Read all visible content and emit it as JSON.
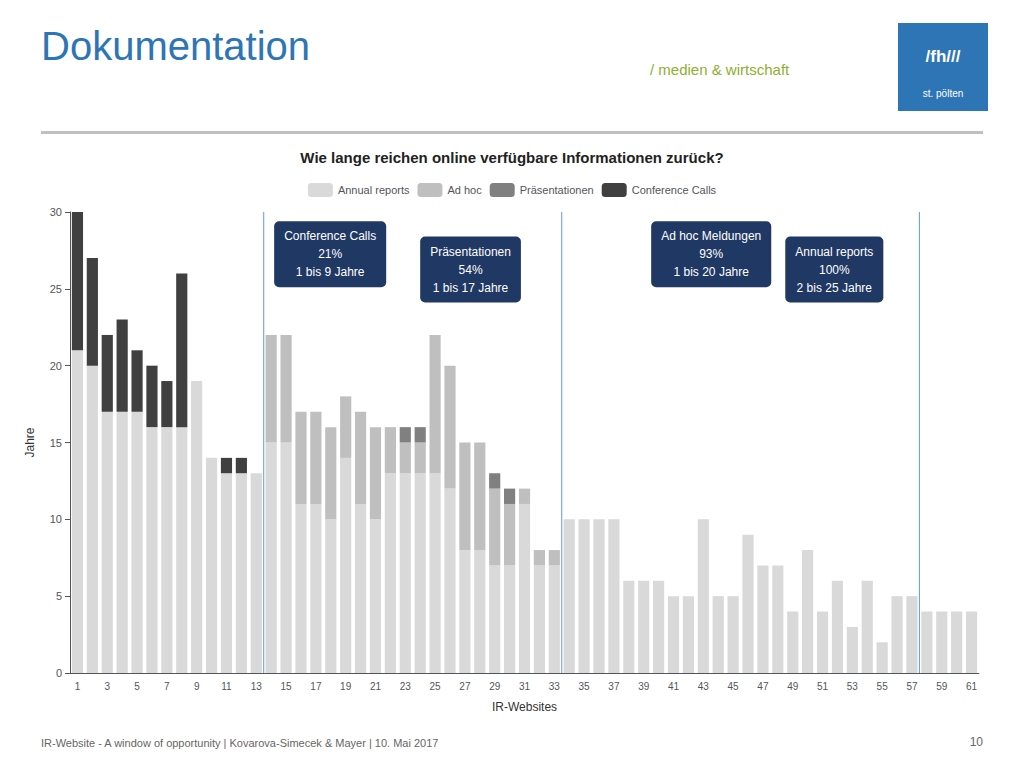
{
  "chart_data": {
    "type": "bar",
    "title": "Wie lange reichen online verfügbare Informationen zurück?",
    "xlabel": "IR-Websites",
    "ylabel": "Jahre",
    "categories": [
      "1",
      null,
      "3",
      null,
      "5",
      null,
      "7",
      null,
      "9",
      null,
      "11",
      null,
      "13",
      null,
      "15",
      null,
      "17",
      null,
      "19",
      null,
      "21",
      null,
      "23",
      null,
      "25",
      null,
      "27",
      null,
      "29",
      null,
      "31",
      null,
      "33",
      null,
      "35",
      null,
      "37",
      null,
      "39",
      null,
      "41",
      null,
      "43",
      null,
      "45",
      null,
      "47",
      null,
      "49",
      null,
      "51",
      null,
      "53",
      null,
      "55",
      null,
      "57",
      null,
      "59",
      null,
      "61"
    ],
    "series": [
      {
        "name": "Annual reports",
        "color": "#D9D9D9",
        "values": [
          21,
          20,
          17,
          17,
          17,
          16,
          16,
          16,
          19,
          14,
          13,
          13,
          13,
          15,
          15,
          11,
          11,
          10,
          14,
          11,
          10,
          13,
          13,
          13,
          13,
          12,
          8,
          8,
          7,
          7,
          11,
          7,
          7,
          10,
          10,
          10,
          10,
          6,
          6,
          6,
          5,
          5,
          10,
          5,
          5,
          9,
          7,
          7,
          4,
          8,
          4,
          6,
          3,
          6,
          2,
          5,
          5,
          4,
          4,
          4,
          4
        ]
      },
      {
        "name": "Ad hoc",
        "color": "#BFBFBF",
        "values": [
          0,
          0,
          0,
          0,
          0,
          0,
          0,
          0,
          0,
          0,
          0,
          0,
          0,
          7,
          7,
          6,
          6,
          6,
          4,
          6,
          6,
          3,
          2,
          2,
          9,
          8,
          7,
          7,
          5,
          4,
          1,
          1,
          1,
          0,
          0,
          0,
          0,
          0,
          0,
          0,
          0,
          0,
          0,
          0,
          0,
          0,
          0,
          0,
          0,
          0,
          0,
          0,
          0,
          0,
          0,
          0,
          0,
          0,
          0,
          0,
          0
        ]
      },
      {
        "name": "Präsentationen",
        "color": "#808080",
        "values": [
          0,
          0,
          0,
          0,
          0,
          0,
          0,
          0,
          0,
          0,
          0,
          0,
          0,
          0,
          0,
          0,
          0,
          0,
          0,
          0,
          0,
          0,
          1,
          1,
          0,
          0,
          0,
          0,
          1,
          1,
          0,
          0,
          0,
          0,
          0,
          0,
          0,
          0,
          0,
          0,
          0,
          0,
          0,
          0,
          0,
          0,
          0,
          0,
          0,
          0,
          0,
          0,
          0,
          0,
          0,
          0,
          0,
          0,
          0,
          0,
          0
        ]
      },
      {
        "name": "Conference Calls",
        "color": "#404040",
        "values": [
          9,
          7,
          5,
          6,
          4,
          4,
          3,
          10,
          0,
          0,
          1,
          1,
          0,
          0,
          0,
          0,
          0,
          0,
          0,
          0,
          0,
          0,
          0,
          0,
          0,
          0,
          0,
          0,
          0,
          0,
          0,
          0,
          0,
          0,
          0,
          0,
          0,
          0,
          0,
          0,
          0,
          0,
          0,
          0,
          0,
          0,
          0,
          0,
          0,
          0,
          0,
          0,
          0,
          0,
          0,
          0,
          0,
          0,
          0,
          0,
          0
        ]
      }
    ],
    "stacked": true,
    "ylim": [
      0,
      30
    ],
    "yticks": [
      0,
      5,
      10,
      15,
      20,
      25,
      30
    ],
    "grid": false,
    "legend": "top",
    "annotations": [
      {
        "text": "Conference Calls\n21%\n1 bis 9 Jahre",
        "color": "#1F3864"
      },
      {
        "text": "Präsentationen\n54%\n1 bis 17 Jahre",
        "color": "#1F3864"
      },
      {
        "text": "Ad hoc Meldungen\n93%\n1 bis 20 Jahre",
        "color": "#1F3864"
      },
      {
        "text": "Annual reports\n100%\n2 bis 25 Jahre",
        "color": "#1F3864"
      }
    ]
  },
  "page": {
    "title": "Dokumentation",
    "title_color": "#2E75B6",
    "logo_text": "/ medien & wirtschaft",
    "logo_color": "#8DB030",
    "badge_texts": [
      "/fh///",
      "st. pölten"
    ],
    "badge_color": "#2E75B6",
    "footer": "IR-Website - A window of opportunity | Kovarova-Simecek & Mayer | 10. Mai 2017",
    "page_number": "10"
  }
}
